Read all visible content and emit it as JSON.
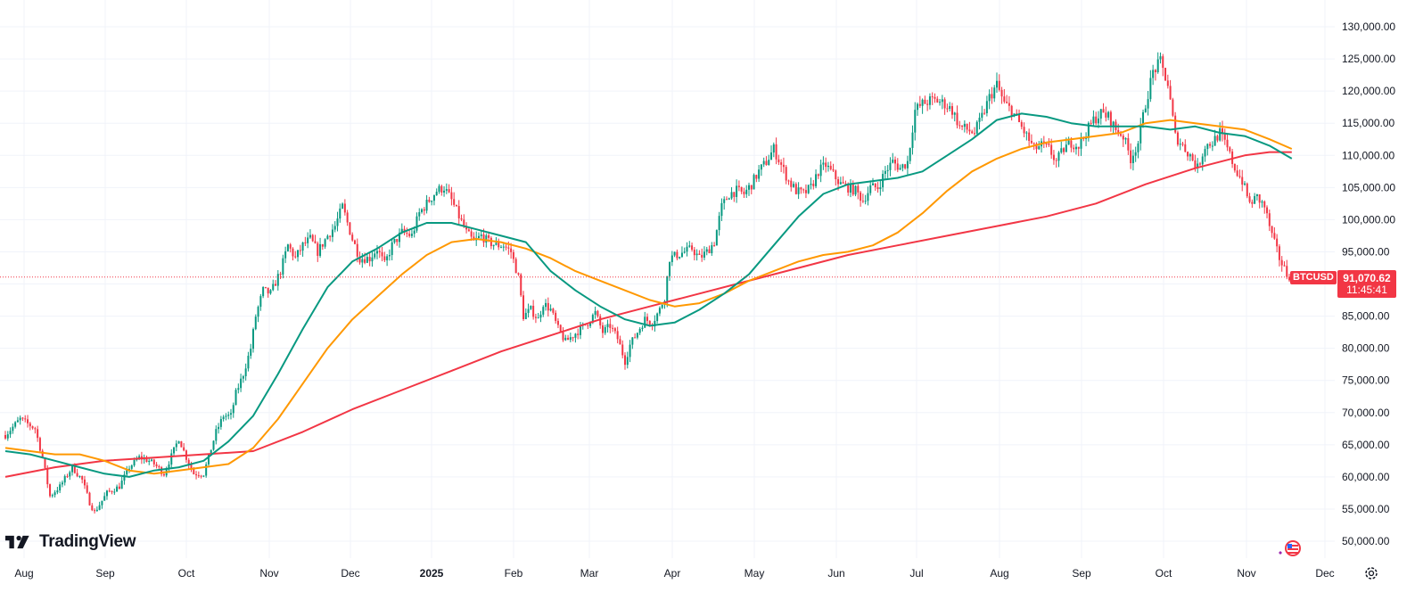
{
  "chart_data": {
    "type": "candlestick",
    "symbol": "BTCUSD",
    "last_price": "91,070.62",
    "countdown": "11:45:41",
    "ylim": [
      48000,
      131500
    ],
    "y_ticks": [
      "130,000.00",
      "125,000.00",
      "120,000.00",
      "115,000.00",
      "110,000.00",
      "105,000.00",
      "100,000.00",
      "95,000.00",
      "90,000.00",
      "85,000.00",
      "80,000.00",
      "75,000.00",
      "70,000.00",
      "65,000.00",
      "60,000.00",
      "55,000.00",
      "50,000.00"
    ],
    "x_ticks": [
      "Aug",
      "Sep",
      "Oct",
      "Nov",
      "Dec",
      "2025",
      "Feb",
      "Mar",
      "Apr",
      "May",
      "Jun",
      "Jul",
      "Aug",
      "Sep",
      "Oct",
      "Nov",
      "Dec"
    ],
    "price_path": [
      [
        0,
        66500
      ],
      [
        6,
        69000
      ],
      [
        12,
        67500
      ],
      [
        15,
        63000
      ],
      [
        18,
        57000
      ],
      [
        22,
        58500
      ],
      [
        27,
        61500
      ],
      [
        31,
        59500
      ],
      [
        34,
        56000
      ],
      [
        36,
        54500
      ],
      [
        41,
        57500
      ],
      [
        46,
        58500
      ],
      [
        50,
        61500
      ],
      [
        54,
        63000
      ],
      [
        58,
        62500
      ],
      [
        60,
        62000
      ],
      [
        64,
        60500
      ],
      [
        70,
        66000
      ],
      [
        73,
        63000
      ],
      [
        76,
        60500
      ],
      [
        80,
        60500
      ],
      [
        85,
        67000
      ],
      [
        88,
        69500
      ],
      [
        91,
        69500
      ],
      [
        93,
        73000
      ],
      [
        96,
        76000
      ],
      [
        99,
        80000
      ],
      [
        101,
        85000
      ],
      [
        104,
        89000
      ],
      [
        107,
        88500
      ],
      [
        111,
        92000
      ],
      [
        114,
        96000
      ],
      [
        117,
        94000
      ],
      [
        120,
        96000
      ],
      [
        123,
        97000
      ],
      [
        126,
        95000
      ],
      [
        130,
        97500
      ],
      [
        133,
        99000
      ],
      [
        136,
        102000
      ],
      [
        140,
        97000
      ],
      [
        143,
        94000
      ],
      [
        147,
        94000
      ],
      [
        150,
        95500
      ],
      [
        153,
        93000
      ],
      [
        156,
        96000
      ],
      [
        160,
        98000
      ],
      [
        164,
        97500
      ],
      [
        167,
        101000
      ],
      [
        171,
        103000
      ],
      [
        174,
        104500
      ],
      [
        177,
        105000
      ],
      [
        180,
        103000
      ],
      [
        183,
        100500
      ],
      [
        186,
        98000
      ],
      [
        189,
        96500
      ],
      [
        192,
        97500
      ],
      [
        195,
        96500
      ],
      [
        198,
        96000
      ],
      [
        201,
        96000
      ],
      [
        204,
        95000
      ],
      [
        207,
        91000
      ],
      [
        209,
        85000
      ],
      [
        212,
        86000
      ],
      [
        215,
        84500
      ],
      [
        217,
        87000
      ],
      [
        220,
        86000
      ],
      [
        223,
        83000
      ],
      [
        226,
        81000
      ],
      [
        229,
        82000
      ],
      [
        232,
        83000
      ],
      [
        235,
        84000
      ],
      [
        238,
        85500
      ],
      [
        241,
        82500
      ],
      [
        244,
        83500
      ],
      [
        247,
        81500
      ],
      [
        250,
        78000
      ],
      [
        252,
        80500
      ],
      [
        255,
        82500
      ],
      [
        258,
        84500
      ],
      [
        261,
        84000
      ],
      [
        264,
        86000
      ],
      [
        266,
        88000
      ],
      [
        268,
        94000
      ],
      [
        271,
        94500
      ],
      [
        274,
        95000
      ],
      [
        277,
        95500
      ],
      [
        280,
        94000
      ],
      [
        283,
        95000
      ],
      [
        286,
        96500
      ],
      [
        289,
        102000
      ],
      [
        292,
        104000
      ],
      [
        295,
        104500
      ],
      [
        298,
        104000
      ],
      [
        301,
        105500
      ],
      [
        304,
        107500
      ],
      [
        307,
        109000
      ],
      [
        310,
        111000
      ],
      [
        313,
        108500
      ],
      [
        316,
        106000
      ],
      [
        319,
        104500
      ],
      [
        322,
        104000
      ],
      [
        325,
        105000
      ],
      [
        328,
        107500
      ],
      [
        331,
        108500
      ],
      [
        334,
        107000
      ],
      [
        337,
        105500
      ],
      [
        340,
        105000
      ],
      [
        343,
        104500
      ],
      [
        346,
        103000
      ],
      [
        349,
        105000
      ],
      [
        352,
        105000
      ],
      [
        355,
        107500
      ],
      [
        358,
        109000
      ],
      [
        361,
        108000
      ],
      [
        364,
        109000
      ],
      [
        367,
        117000
      ],
      [
        370,
        118000
      ],
      [
        373,
        118500
      ],
      [
        376,
        118500
      ],
      [
        379,
        118000
      ],
      [
        382,
        117000
      ],
      [
        385,
        114500
      ],
      [
        388,
        114000
      ],
      [
        391,
        113500
      ],
      [
        394,
        116000
      ],
      [
        397,
        119000
      ],
      [
        400,
        121000
      ],
      [
        403,
        118000
      ],
      [
        406,
        117000
      ],
      [
        409,
        115000
      ],
      [
        412,
        113000
      ],
      [
        415,
        111000
      ],
      [
        418,
        111500
      ],
      [
        421,
        111000
      ],
      [
        424,
        109000
      ],
      [
        427,
        111000
      ],
      [
        430,
        112000
      ],
      [
        433,
        111500
      ],
      [
        436,
        113500
      ],
      [
        439,
        115500
      ],
      [
        442,
        116500
      ],
      [
        445,
        116000
      ],
      [
        448,
        114000
      ],
      [
        451,
        113000
      ],
      [
        454,
        109500
      ],
      [
        457,
        112000
      ],
      [
        460,
        118000
      ],
      [
        463,
        123000
      ],
      [
        466,
        124500
      ],
      [
        469,
        121000
      ],
      [
        472,
        113000
      ],
      [
        475,
        111500
      ],
      [
        478,
        110000
      ],
      [
        481,
        108000
      ],
      [
        484,
        111500
      ],
      [
        487,
        112000
      ],
      [
        490,
        113500
      ],
      [
        493,
        111000
      ],
      [
        496,
        108000
      ],
      [
        499,
        106000
      ],
      [
        502,
        102500
      ],
      [
        505,
        103500
      ],
      [
        508,
        102000
      ],
      [
        511,
        97500
      ],
      [
        514,
        94000
      ],
      [
        517,
        91500
      ],
      [
        519,
        91070
      ]
    ],
    "ma_green": [
      [
        0,
        64000
      ],
      [
        10,
        63500
      ],
      [
        20,
        62500
      ],
      [
        30,
        61500
      ],
      [
        40,
        60500
      ],
      [
        50,
        60000
      ],
      [
        60,
        61000
      ],
      [
        70,
        61500
      ],
      [
        80,
        62500
      ],
      [
        90,
        65500
      ],
      [
        100,
        69500
      ],
      [
        110,
        76000
      ],
      [
        120,
        83000
      ],
      [
        130,
        89500
      ],
      [
        140,
        93500
      ],
      [
        150,
        95500
      ],
      [
        160,
        98000
      ],
      [
        170,
        99500
      ],
      [
        180,
        99500
      ],
      [
        190,
        98500
      ],
      [
        200,
        97500
      ],
      [
        210,
        96500
      ],
      [
        220,
        92000
      ],
      [
        230,
        89000
      ],
      [
        240,
        86500
      ],
      [
        250,
        84500
      ],
      [
        260,
        83500
      ],
      [
        270,
        84000
      ],
      [
        280,
        86000
      ],
      [
        290,
        88500
      ],
      [
        300,
        91500
      ],
      [
        310,
        96000
      ],
      [
        320,
        100500
      ],
      [
        330,
        104000
      ],
      [
        340,
        105500
      ],
      [
        350,
        106000
      ],
      [
        360,
        106500
      ],
      [
        370,
        107500
      ],
      [
        380,
        110000
      ],
      [
        390,
        112500
      ],
      [
        400,
        115500
      ],
      [
        410,
        116500
      ],
      [
        420,
        116000
      ],
      [
        430,
        115000
      ],
      [
        440,
        114500
      ],
      [
        450,
        114500
      ],
      [
        460,
        114500
      ],
      [
        470,
        114000
      ],
      [
        480,
        114500
      ],
      [
        490,
        113500
      ],
      [
        500,
        113000
      ],
      [
        510,
        111500
      ],
      [
        519,
        109500
      ]
    ],
    "ma_orange": [
      [
        0,
        64500
      ],
      [
        10,
        64000
      ],
      [
        20,
        63500
      ],
      [
        30,
        63500
      ],
      [
        40,
        62500
      ],
      [
        50,
        61000
      ],
      [
        60,
        60500
      ],
      [
        70,
        61000
      ],
      [
        80,
        61500
      ],
      [
        90,
        62000
      ],
      [
        100,
        64500
      ],
      [
        110,
        69000
      ],
      [
        120,
        74500
      ],
      [
        130,
        80000
      ],
      [
        140,
        84500
      ],
      [
        150,
        88000
      ],
      [
        160,
        91500
      ],
      [
        170,
        94500
      ],
      [
        180,
        96500
      ],
      [
        190,
        97000
      ],
      [
        200,
        96500
      ],
      [
        210,
        95500
      ],
      [
        220,
        94000
      ],
      [
        230,
        92000
      ],
      [
        240,
        90500
      ],
      [
        250,
        89000
      ],
      [
        260,
        87500
      ],
      [
        270,
        86500
      ],
      [
        280,
        87000
      ],
      [
        290,
        88500
      ],
      [
        300,
        90500
      ],
      [
        310,
        92000
      ],
      [
        320,
        93500
      ],
      [
        330,
        94500
      ],
      [
        340,
        95000
      ],
      [
        350,
        96000
      ],
      [
        360,
        98000
      ],
      [
        370,
        101000
      ],
      [
        380,
        104500
      ],
      [
        390,
        107500
      ],
      [
        400,
        109500
      ],
      [
        410,
        111000
      ],
      [
        420,
        112000
      ],
      [
        430,
        112500
      ],
      [
        440,
        113000
      ],
      [
        450,
        113500
      ],
      [
        460,
        115000
      ],
      [
        470,
        115500
      ],
      [
        480,
        115000
      ],
      [
        490,
        114500
      ],
      [
        500,
        114000
      ],
      [
        510,
        112500
      ],
      [
        519,
        111000
      ]
    ],
    "ma_red": [
      [
        0,
        60000
      ],
      [
        20,
        61500
      ],
      [
        40,
        62500
      ],
      [
        60,
        63000
      ],
      [
        80,
        63500
      ],
      [
        100,
        64000
      ],
      [
        120,
        67000
      ],
      [
        140,
        70500
      ],
      [
        160,
        73500
      ],
      [
        180,
        76500
      ],
      [
        200,
        79500
      ],
      [
        220,
        82000
      ],
      [
        240,
        84500
      ],
      [
        260,
        86500
      ],
      [
        280,
        88500
      ],
      [
        300,
        90500
      ],
      [
        320,
        92500
      ],
      [
        340,
        94500
      ],
      [
        360,
        96000
      ],
      [
        380,
        97500
      ],
      [
        400,
        99000
      ],
      [
        420,
        100500
      ],
      [
        440,
        102500
      ],
      [
        460,
        105500
      ],
      [
        480,
        108000
      ],
      [
        500,
        110000
      ],
      [
        510,
        110500
      ],
      [
        519,
        110500
      ]
    ]
  }
}
